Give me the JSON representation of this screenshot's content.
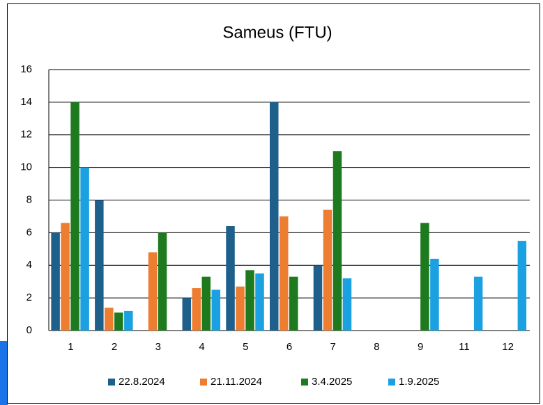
{
  "chart_data": {
    "type": "bar",
    "title": "Sameus (FTU)",
    "categories": [
      "1",
      "2",
      "3",
      "4",
      "5",
      "6",
      "7",
      "8",
      "9",
      "11",
      "12"
    ],
    "series": [
      {
        "name": "22.8.2024",
        "color": "#1f5f8b",
        "values": [
          6,
          8,
          null,
          2,
          6.4,
          14,
          4,
          null,
          null,
          null,
          null
        ]
      },
      {
        "name": "21.11.2024",
        "color": "#ed7d31",
        "values": [
          6.6,
          1.4,
          4.8,
          2.6,
          2.7,
          7.0,
          7.4,
          null,
          null,
          null,
          null
        ]
      },
      {
        "name": "3.4.2025",
        "color": "#1e7a1e",
        "values": [
          14,
          1.1,
          6,
          3.3,
          3.7,
          3.3,
          11,
          null,
          6.6,
          null,
          null
        ]
      },
      {
        "name": "1.9.2025",
        "color": "#1ba1e2",
        "values": [
          10,
          1.2,
          null,
          2.5,
          3.5,
          null,
          3.2,
          null,
          4.4,
          3.3,
          5.5
        ]
      }
    ],
    "ylim": [
      0,
      16
    ],
    "yticks": [
      0,
      2,
      4,
      6,
      8,
      10,
      12,
      14,
      16
    ],
    "grid": true,
    "legend": "bottom"
  }
}
